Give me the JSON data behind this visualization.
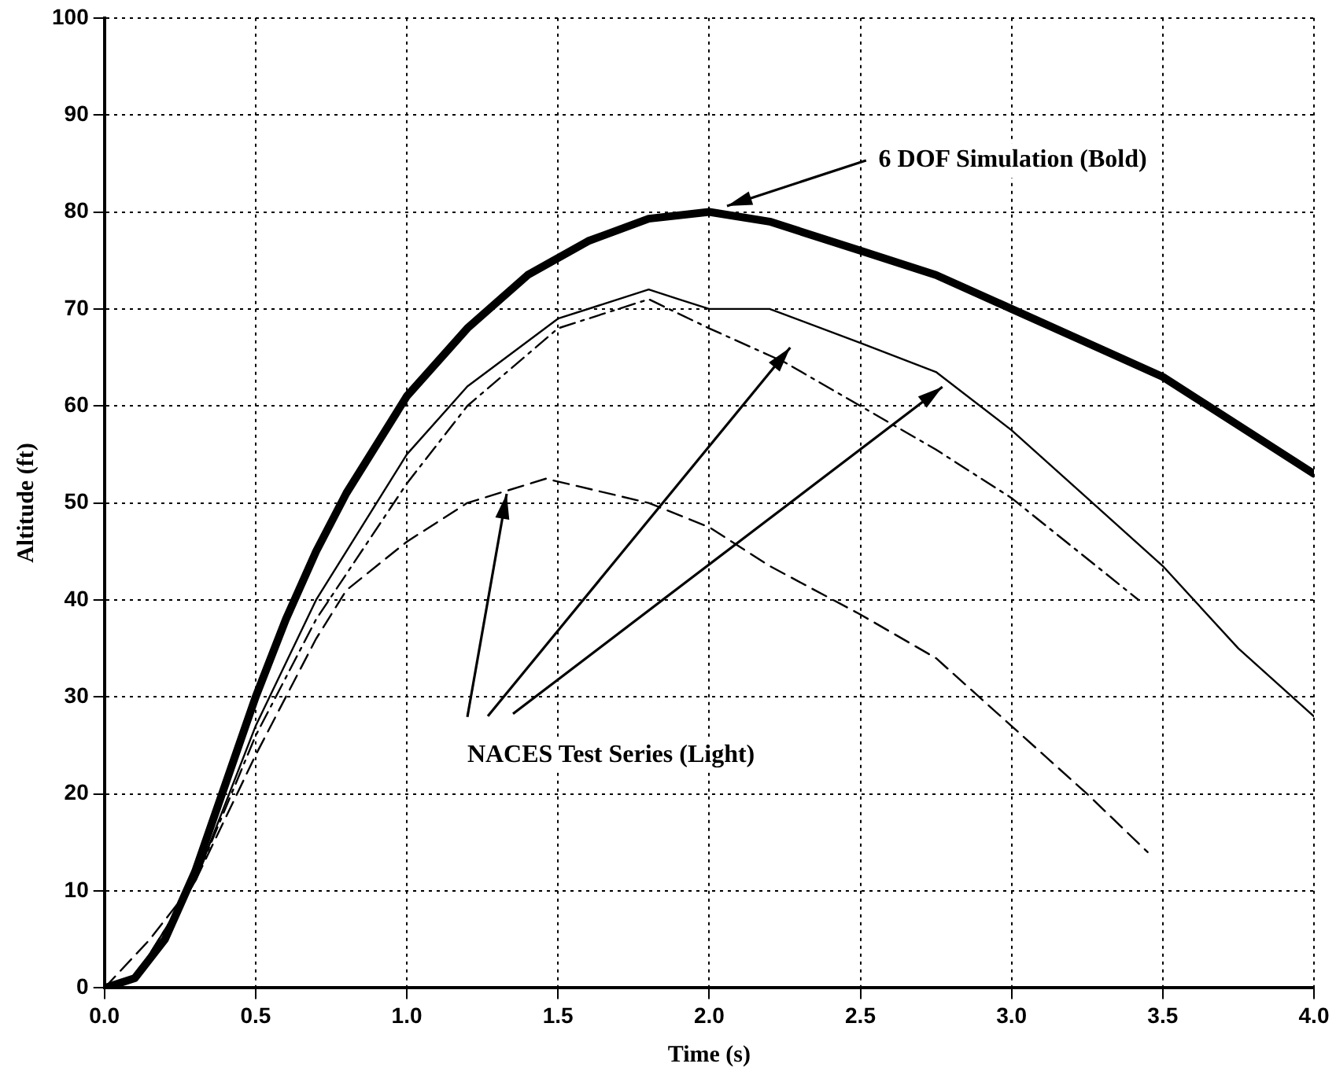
{
  "chart_data": {
    "type": "line",
    "xlabel": "Time (s)",
    "ylabel": "Altitude (ft)",
    "xlim": [
      0,
      4
    ],
    "xticks": [
      {
        "value": 0,
        "label": "0.0"
      },
      {
        "value": 0.5,
        "label": "0.5"
      },
      {
        "value": 1,
        "label": "1.0"
      },
      {
        "value": 1.5,
        "label": "1.5"
      },
      {
        "value": 2,
        "label": "2.0"
      },
      {
        "value": 2.5,
        "label": "2.5"
      },
      {
        "value": 3,
        "label": "3.0"
      },
      {
        "value": 3.5,
        "label": "3.5"
      },
      {
        "value": 4,
        "label": "4.0"
      }
    ],
    "ylim": [
      0,
      100
    ],
    "yticks": [
      0,
      10,
      20,
      30,
      40,
      50,
      60,
      70,
      80,
      90,
      100
    ],
    "grid": true,
    "legend": false,
    "marker": "none",
    "annotations": [
      {
        "text": "6 DOF Simulation (Bold)",
        "x": 2.06,
        "y": 80.6
      },
      {
        "text": "NACES Test Series (Light)",
        "x": 1.33,
        "y": 51
      }
    ],
    "series": [
      {
        "color": "#000000",
        "line_style": "solid",
        "x": [
          0,
          0.1,
          0.2,
          0.3,
          0.4,
          0.5,
          0.6,
          0.7,
          0.8,
          0.9,
          1.0,
          1.2,
          1.4,
          1.6,
          1.8,
          2.0,
          2.2,
          2.5,
          2.75,
          3.0,
          3.25,
          3.5,
          3.75,
          4.0
        ],
        "values": [
          0,
          1,
          5,
          12,
          21,
          30,
          38,
          45,
          51,
          56,
          61,
          68,
          73.5,
          77,
          79.3,
          80,
          79,
          76,
          73.5,
          70,
          66.5,
          63,
          58,
          53
        ]
      },
      {
        "color": "#000000",
        "line_style": "solid",
        "x": [
          0,
          0.1,
          0.3,
          0.5,
          0.7,
          0.9,
          1.0,
          1.2,
          1.5,
          1.8,
          1.9,
          2.0,
          2.2,
          2.5,
          2.75,
          3.0,
          3.25,
          3.5,
          3.75,
          4.0
        ],
        "values": [
          0,
          1,
          11,
          27,
          40,
          50,
          55,
          62,
          69,
          72,
          71,
          70,
          70,
          66.5,
          63.5,
          57.5,
          50.5,
          43.5,
          35,
          28
        ]
      },
      {
        "color": "#000000",
        "line_style": "dashdot",
        "x": [
          0,
          0.1,
          0.3,
          0.5,
          0.7,
          1.0,
          1.2,
          1.5,
          1.8,
          2.0,
          2.25,
          2.5,
          2.75,
          3.0,
          3.2,
          3.42
        ],
        "values": [
          0,
          1,
          11,
          26,
          38,
          52,
          60,
          68,
          71,
          68,
          64.5,
          60,
          55.5,
          50.5,
          45.5,
          40
        ]
      },
      {
        "color": "#000000",
        "line_style": "dashed",
        "x": [
          0,
          0.15,
          0.3,
          0.5,
          0.7,
          0.8,
          1.0,
          1.2,
          1.46,
          1.8,
          2.0,
          2.2,
          2.5,
          2.75,
          3.0,
          3.25,
          3.45
        ],
        "values": [
          0,
          5,
          11,
          24,
          36,
          41,
          46,
          50,
          52.5,
          50,
          47.5,
          43.5,
          38.5,
          34,
          27,
          20,
          14
        ]
      }
    ]
  }
}
